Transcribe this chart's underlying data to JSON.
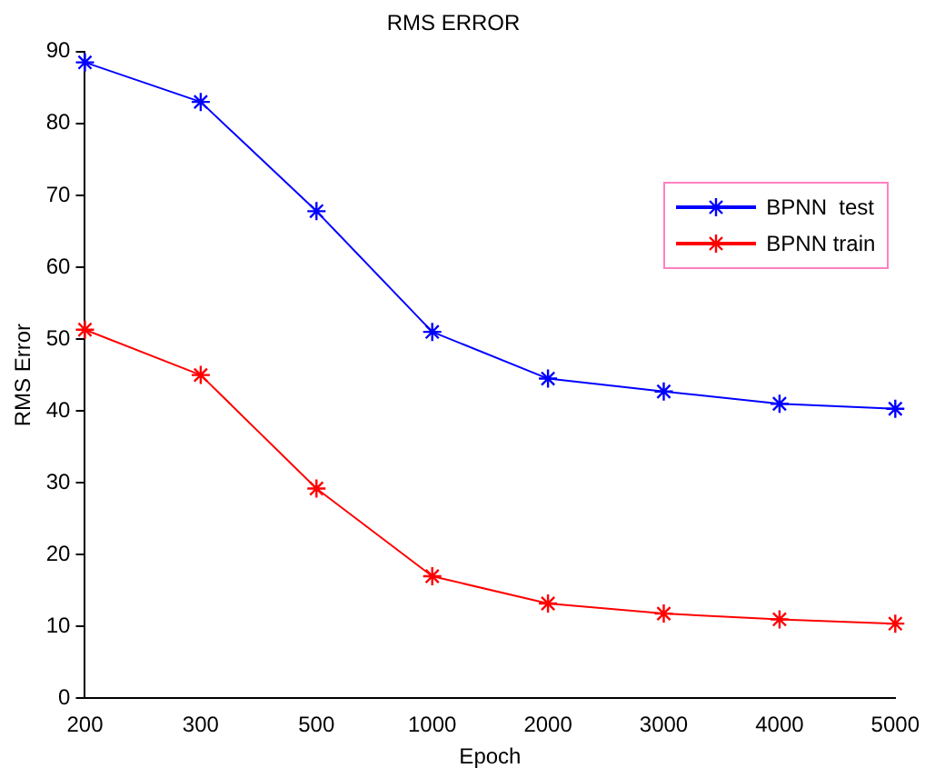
{
  "chart_data": {
    "type": "line",
    "title": "RMS ERROR",
    "xlabel": "Epoch",
    "ylabel": "RMS Error",
    "categories": [
      "200",
      "300",
      "500",
      "1000",
      "2000",
      "3000",
      "4000",
      "5000"
    ],
    "series": [
      {
        "name": "BPNN  test",
        "color": "#0000ff",
        "values": [
          88.5,
          83,
          67.8,
          51,
          44.5,
          42.7,
          41,
          40.3
        ]
      },
      {
        "name": "BPNN train",
        "color": "#ff0000",
        "values": [
          51.3,
          45,
          29.2,
          17,
          13.2,
          11.8,
          11,
          10.4
        ]
      }
    ],
    "ylim": [
      0,
      90
    ],
    "yticks": [
      0,
      10,
      20,
      30,
      40,
      50,
      60,
      70,
      80,
      90
    ],
    "grid": false,
    "legend": "right",
    "marker": "cross",
    "line_style": "solid"
  }
}
